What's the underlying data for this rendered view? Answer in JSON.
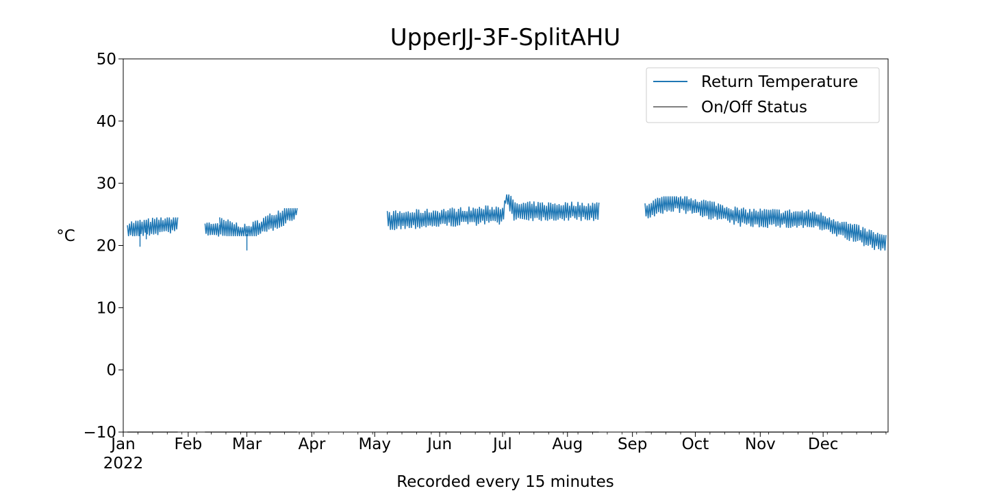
{
  "chart_data": {
    "type": "line",
    "title": "UpperJJ-3F-SplitAHU",
    "xlabel": "Recorded every 15 minutes",
    "ylabel": "°C",
    "xlim": [
      "2022-01-01",
      "2022-12-31"
    ],
    "ylim": [
      -10,
      50
    ],
    "yticks": [
      -10,
      0,
      10,
      20,
      30,
      40,
      50
    ],
    "xtick_labels": [
      "Jan",
      "Feb",
      "Mar",
      "Apr",
      "May",
      "Jun",
      "Jul",
      "Aug",
      "Sep",
      "Oct",
      "Nov",
      "Dec"
    ],
    "xtick_dates": [
      "2022-01-01",
      "2022-02-01",
      "2022-03-01",
      "2022-04-01",
      "2022-05-01",
      "2022-06-01",
      "2022-07-01",
      "2022-08-01",
      "2022-09-01",
      "2022-10-01",
      "2022-11-01",
      "2022-12-01"
    ],
    "year_label": "2022",
    "grid": false,
    "legend_position": "top-right",
    "series": [
      {
        "name": "Return Temperature",
        "color": "#1f77b4",
        "segments": [
          {
            "start": "2022-01-03",
            "end": "2022-01-27",
            "low": 21.5,
            "high": 24.5,
            "trend": [
              [
                0,
                22.5
              ],
              [
                1,
                23.5
              ]
            ],
            "dips": [
              {
                "x": "2022-01-09",
                "y": 19.8
              },
              {
                "x": "2022-01-12",
                "y": 21.0
              }
            ]
          },
          {
            "start": "2022-02-09",
            "end": "2022-02-16",
            "low": 21.0,
            "high": 23.7,
            "trend": [
              [
                0,
                22.8
              ],
              [
                1,
                22.5
              ]
            ],
            "dips": []
          },
          {
            "start": "2022-02-16",
            "end": "2022-03-25",
            "low": 21.5,
            "high": 26.0,
            "trend": [
              [
                0,
                23.0
              ],
              [
                0.35,
                21.8
              ],
              [
                1,
                25.8
              ]
            ],
            "dips": [
              {
                "x": "2022-03-01",
                "y": 19.2
              }
            ]
          },
          {
            "start": "2022-05-07",
            "end": "2022-08-16",
            "low": 22.0,
            "high": 28.2,
            "trend": [
              [
                0,
                24.0
              ],
              [
                0.55,
                25.0
              ],
              [
                0.56,
                28.2
              ],
              [
                0.6,
                25.5
              ],
              [
                1,
                25.5
              ]
            ],
            "dips": []
          },
          {
            "start": "2022-09-07",
            "end": "2022-12-31",
            "low": 19.2,
            "high": 27.9,
            "trend": [
              [
                0,
                25.5
              ],
              [
                0.12,
                27.0
              ],
              [
                0.3,
                25.5
              ],
              [
                0.4,
                24.5
              ],
              [
                0.7,
                24.2
              ],
              [
                1,
                20.2
              ]
            ],
            "dips": []
          }
        ]
      },
      {
        "name": "On/Off Status",
        "color": "#7f7f7f",
        "value": -10,
        "segments": [
          {
            "start": "2022-01-03",
            "end": "2022-01-27"
          },
          {
            "start": "2022-02-09",
            "end": "2022-03-25"
          },
          {
            "start": "2022-05-07",
            "end": "2022-08-16"
          },
          {
            "start": "2022-09-07",
            "end": "2022-12-31"
          }
        ]
      }
    ]
  }
}
